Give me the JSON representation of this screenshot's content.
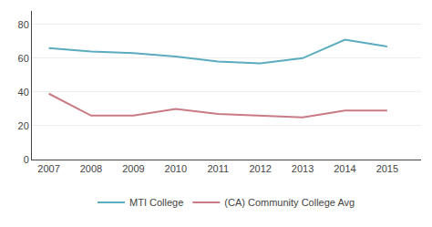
{
  "chart_data": {
    "type": "line",
    "x": [
      2007,
      2008,
      2009,
      2010,
      2011,
      2012,
      2013,
      2014,
      2015
    ],
    "series": [
      {
        "name": "MTI College",
        "color": "#5aacbe",
        "values": [
          66,
          64,
          63,
          61,
          58,
          57,
          60,
          71,
          67
        ]
      },
      {
        "name": "(CA) Community College Avg",
        "color": "#c97b85",
        "values": [
          39,
          26,
          26,
          30,
          27,
          26,
          25,
          29,
          29
        ]
      }
    ],
    "xlim": [
      2006.6,
      2015.8
    ],
    "xticks": [
      2007,
      2008,
      2009,
      2010,
      2011,
      2012,
      2013,
      2014,
      2015
    ],
    "ylim": [
      0,
      88
    ],
    "yticks": [
      0,
      20,
      40,
      60,
      80
    ],
    "grid": true,
    "legend": "bottom"
  }
}
